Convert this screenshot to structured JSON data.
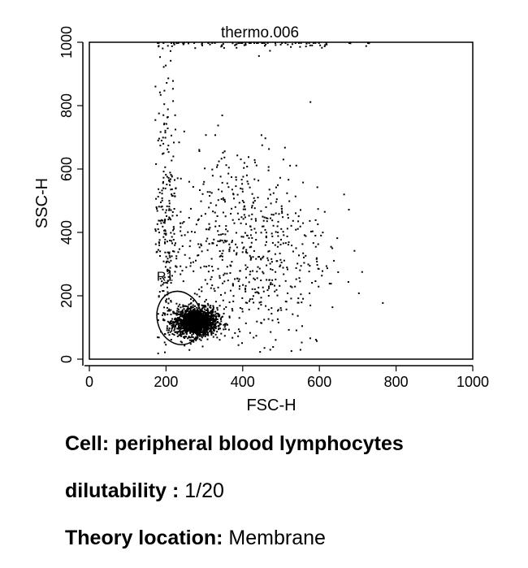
{
  "chart_data": {
    "type": "scatter",
    "title": "thermo.006",
    "xlabel": "FSC-H",
    "ylabel": "SSC-H",
    "xlim": [
      0,
      1000
    ],
    "ylim": [
      0,
      1000
    ],
    "xticks": [
      0,
      200,
      400,
      600,
      800,
      1000
    ],
    "yticks": [
      0,
      200,
      400,
      600,
      800,
      1000
    ],
    "gate": {
      "label": "R1",
      "center": [
        235,
        130
      ],
      "radius_x": 58,
      "radius_y": 85
    },
    "clusters": [
      {
        "name": "lymphocytes",
        "center": [
          275,
          120
        ],
        "spread": [
          28,
          22
        ],
        "count": 1600
      },
      {
        "name": "diffuse",
        "center": [
          400,
          350
        ],
        "spread": [
          110,
          170
        ],
        "count": 700
      },
      {
        "name": "left-edge",
        "center": [
          200,
          450
        ],
        "spread": [
          15,
          220
        ],
        "count": 220
      },
      {
        "name": "top-saturated",
        "center": [
          380,
          1000
        ],
        "spread": [
          140,
          8
        ],
        "count": 90
      }
    ]
  },
  "captions": {
    "cell_label": "Cell:",
    "cell_value": "peripheral blood lymphocytes",
    "dilutability_label": "dilutability :",
    "dilutability_value": "1/20",
    "theory_label": "Theory location:",
    "theory_value": "Membrane"
  }
}
